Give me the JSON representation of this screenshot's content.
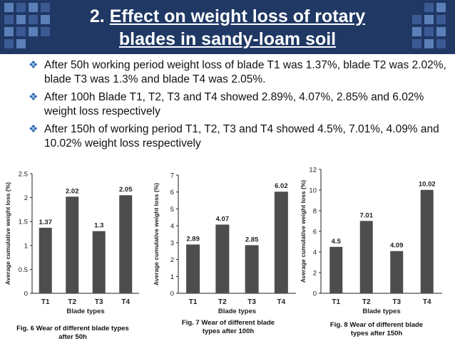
{
  "slide": {
    "number": "2.",
    "title_line1": "Effect on weight loss of rotary",
    "title_line2": "blades in sandy-loam soil",
    "colors": {
      "header": "#1f3864",
      "square_light": "#5b7fb8",
      "square_dark": "#3b5a93",
      "bullet": "#2e6db4",
      "bar": "#4d4d4d"
    }
  },
  "bullets": [
    {
      "icon": "diamond-bullet-icon",
      "text": "After 50h working period  weight loss of blade T1 was 1.37%, blade T2 was 2.02%, blade T3 was 1.3% and blade T4 was 2.05%."
    },
    {
      "icon": "diamond-bullet-icon",
      "text": "After 100h Blade T1, T2, T3 and T4 showed 2.89%, 4.07%, 2.85% and 6.02% weight loss respectively"
    },
    {
      "icon": "diamond-bullet-icon",
      "text": "After 150h of working period T1, T2, T3 and T4 showed 4.5%, 7.01%, 4.09% and 10.02% weight loss respectively"
    }
  ],
  "chart_data": [
    {
      "type": "bar",
      "categories": [
        "T1",
        "T2",
        "T3",
        "T4"
      ],
      "values": [
        1.37,
        2.02,
        1.3,
        2.05
      ],
      "value_labels": [
        "1.37",
        "2.02",
        "1.3",
        "2.05"
      ],
      "title": "Fig. 6 Wear of different blade types after 50h",
      "caption_lines": [
        "Fig. 6 Wear of different blade types",
        "after 50h"
      ],
      "xlabel": "Blade types",
      "ylabel": "Average cumulative weight loss (%)",
      "ylim": [
        0,
        2.5
      ],
      "yticks": [
        0,
        0.5,
        1,
        1.5,
        2,
        2.5
      ],
      "ytick_labels": [
        "0",
        "0.5",
        "1",
        "1.5",
        "2",
        "2.5"
      ],
      "grid": false
    },
    {
      "type": "bar",
      "categories": [
        "T1",
        "T2",
        "T3",
        "T4"
      ],
      "values": [
        2.89,
        4.07,
        2.85,
        6.02
      ],
      "value_labels": [
        "2.89",
        "4.07",
        "2.85",
        "6.02"
      ],
      "title": "Fig. 7 Wear of different blade types after 100h",
      "caption_lines": [
        "Fig. 7 Wear of different blade",
        "types after 100h"
      ],
      "xlabel": "Blade types",
      "ylabel": "Average cumulative weight loss (%)",
      "ylim": [
        0,
        7
      ],
      "yticks": [
        0,
        1,
        2,
        3,
        4,
        5,
        6,
        7
      ],
      "ytick_labels": [
        "0",
        "1",
        "2",
        "3",
        "4",
        "5",
        "6",
        "7"
      ],
      "grid": false
    },
    {
      "type": "bar",
      "categories": [
        "T1",
        "T2",
        "T3",
        "T4"
      ],
      "values": [
        4.5,
        7.01,
        4.09,
        10.02
      ],
      "value_labels": [
        "4.5",
        "7.01",
        "4.09",
        "10.02"
      ],
      "title": "Fig. 8 Wear of different blade types after 150h",
      "caption_lines": [
        "Fig. 8 Wear of different blade",
        "types after 150h"
      ],
      "xlabel": "Blade types",
      "ylabel": "Average cumulative weight loss (%)",
      "ylim": [
        0,
        12
      ],
      "yticks": [
        0,
        2,
        4,
        6,
        8,
        10,
        12
      ],
      "ytick_labels": [
        "0",
        "2",
        "4",
        "6",
        "8",
        "10",
        "12"
      ],
      "grid": false
    }
  ]
}
